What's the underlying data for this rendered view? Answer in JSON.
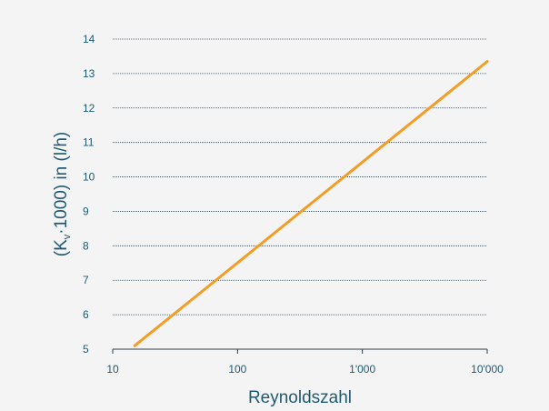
{
  "chart_data": {
    "type": "line",
    "xlabel": "Reynoldszahl",
    "ylabel": {
      "open": "(K",
      "sub": "v",
      "rest": "·1000) in (l/h)"
    },
    "x_scale": "log",
    "xlim": [
      10,
      10000
    ],
    "ylim": [
      5,
      14
    ],
    "x_ticks": [
      {
        "value": 10,
        "label": "10"
      },
      {
        "value": 100,
        "label": "100"
      },
      {
        "value": 1000,
        "label": "1'000"
      },
      {
        "value": 10000,
        "label": "10'000"
      }
    ],
    "y_ticks": [
      {
        "value": 5,
        "label": "5"
      },
      {
        "value": 6,
        "label": "6"
      },
      {
        "value": 7,
        "label": "7"
      },
      {
        "value": 8,
        "label": "8"
      },
      {
        "value": 9,
        "label": "9"
      },
      {
        "value": 10,
        "label": "10"
      },
      {
        "value": 11,
        "label": "11"
      },
      {
        "value": 12,
        "label": "12"
      },
      {
        "value": 13,
        "label": "13"
      },
      {
        "value": 14,
        "label": "14"
      }
    ],
    "grid": "horizontal",
    "series": [
      {
        "color": "#f39c26",
        "x": [
          15,
          10000
        ],
        "y": [
          5.1,
          13.35
        ]
      }
    ]
  }
}
